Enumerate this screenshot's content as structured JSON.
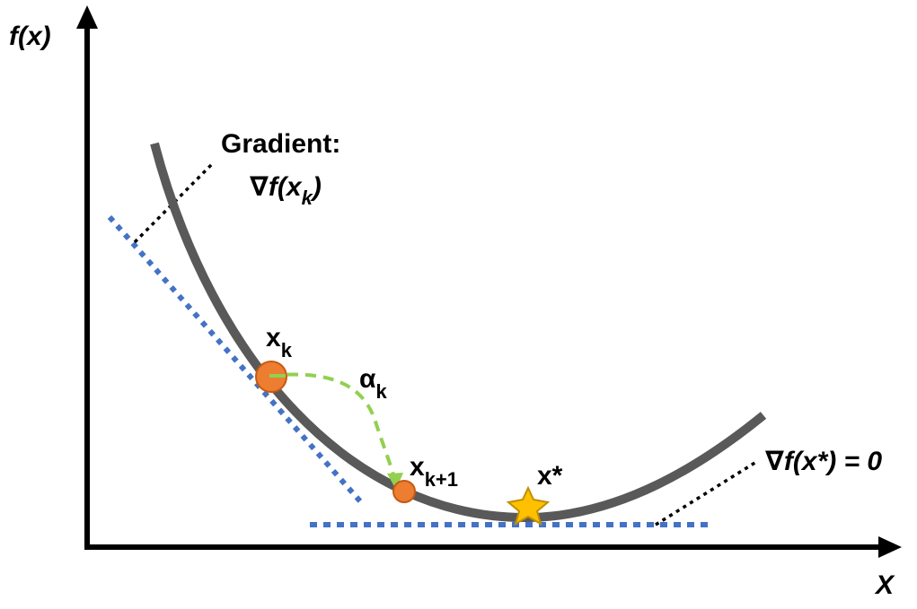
{
  "colors": {
    "axis": "#000000",
    "curve": "#595959",
    "tangent": "#4472C4",
    "leader": "#000000",
    "step": "#92D050",
    "point_fill": "#ED7D31",
    "point_stroke": "#C55A11",
    "star_fill": "#FFC000",
    "star_stroke": "#BF9000"
  },
  "labels": {
    "y_axis": "f(x)",
    "x_axis": "X",
    "gradient_title": "Gradient:",
    "gradient_expr_open": "∇f(x",
    "gradient_expr_sub": "k",
    "gradient_expr_close": ")",
    "xk_main": "x",
    "xk_sub": "k",
    "alpha_main": "α",
    "alpha_sub": "k",
    "xk1_main": "x",
    "xk1_sub": "k+1",
    "xstar": "x*",
    "zero_grad": "∇f(x*) = 0"
  },
  "icons": {
    "optimum_marker": "star-icon",
    "current_point": "circle-marker",
    "next_point": "circle-marker"
  }
}
